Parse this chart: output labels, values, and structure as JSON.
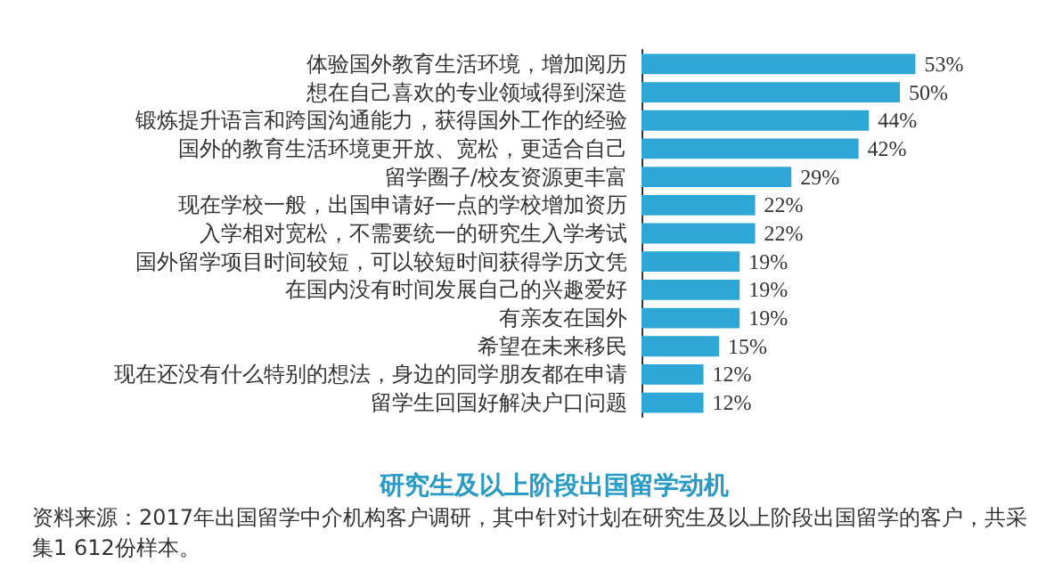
{
  "chart_data": {
    "type": "bar",
    "orientation": "horizontal",
    "title": "研究生及以上阶段出国留学动机",
    "categories": [
      "体验国外教育生活环境，增加阅历",
      "想在自己喜欢的专业领域得到深造",
      "锻炼提升语言和跨国沟通能力，获得国外工作的经验",
      "国外的教育生活环境更开放、宽松，更适合自己",
      "留学圈子/校友资源更丰富",
      "现在学校一般，出国申请好一点的学校增加资历",
      "入学相对宽松，不需要统一的研究生入学考试",
      "国外留学项目时间较短，可以较短时间获得学历文凭",
      "在国内没有时间发展自己的兴趣爱好",
      "有亲友在国外",
      "希望在未来移民",
      "现在还没有什么特别的想法，身边的同学朋友都在申请",
      "留学生回国好解决户口问题"
    ],
    "values": [
      53,
      50,
      44,
      42,
      29,
      22,
      22,
      19,
      19,
      19,
      15,
      12,
      12
    ],
    "value_labels": [
      "53%",
      "50%",
      "44%",
      "42%",
      "29%",
      "22%",
      "22%",
      "19%",
      "19%",
      "19%",
      "15%",
      "12%",
      "12%"
    ],
    "color": "#2ea6d6",
    "annotations": [
      "资料来源：2017年出国留学中介机构客户调研，其中针对计划在研究生及以上阶段出国留学的客户，共采集1 612份样本。"
    ]
  }
}
